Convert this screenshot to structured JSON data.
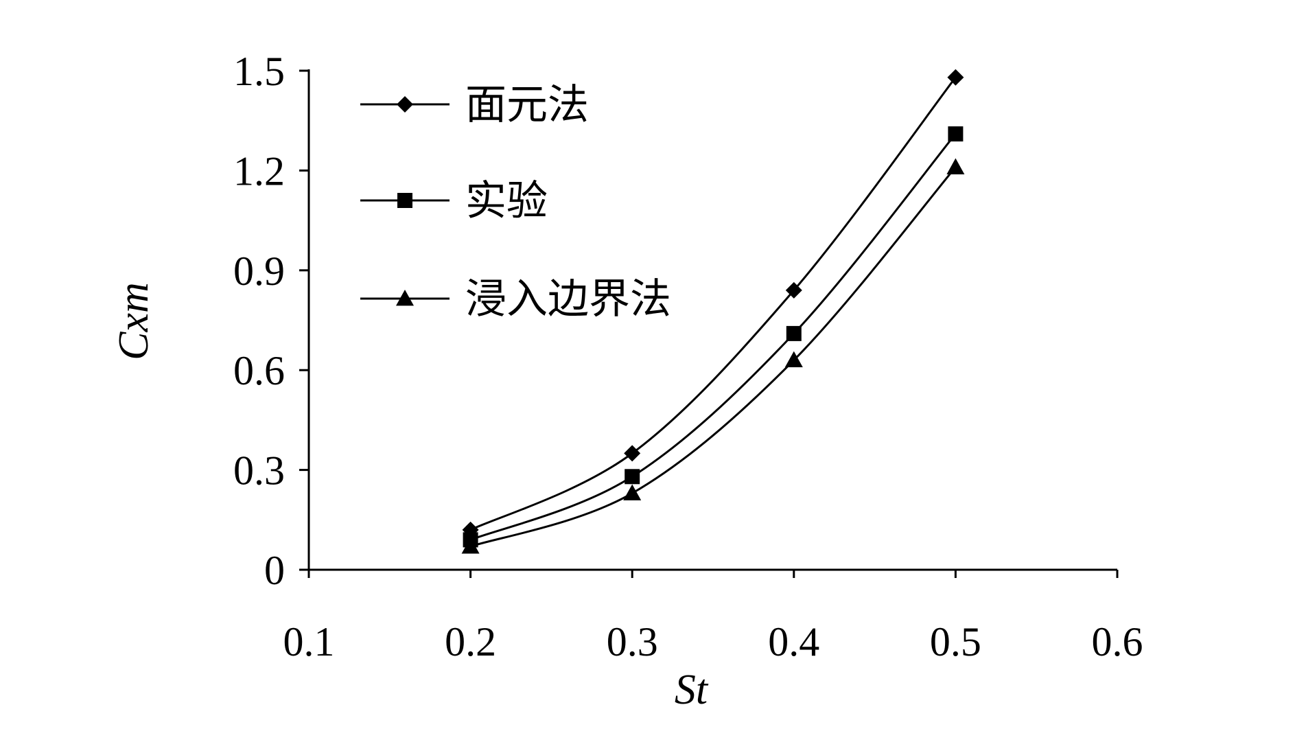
{
  "chart_data": {
    "type": "line",
    "title": "",
    "xlabel": "St",
    "ylabel": "Cxm",
    "xlim": [
      0.1,
      0.6
    ],
    "ylim": [
      0,
      1.5
    ],
    "x_ticks": [
      "0.1",
      "0.2",
      "0.3",
      "0.4",
      "0.5",
      "0.6"
    ],
    "y_ticks": [
      "0",
      "0.3",
      "0.6",
      "0.9",
      "1.2",
      "1.5"
    ],
    "x": [
      0.2,
      0.3,
      0.4,
      0.5
    ],
    "series": [
      {
        "name": "面元法",
        "marker": "diamond",
        "values": [
          0.12,
          0.35,
          0.84,
          1.48
        ]
      },
      {
        "name": "实验",
        "marker": "square",
        "values": [
          0.09,
          0.28,
          0.71,
          1.31
        ]
      },
      {
        "name": "浸入边界法",
        "marker": "triangle",
        "values": [
          0.07,
          0.23,
          0.63,
          1.21
        ]
      }
    ],
    "legend_position": "top-left",
    "grid": false,
    "line_color": "#000000"
  }
}
